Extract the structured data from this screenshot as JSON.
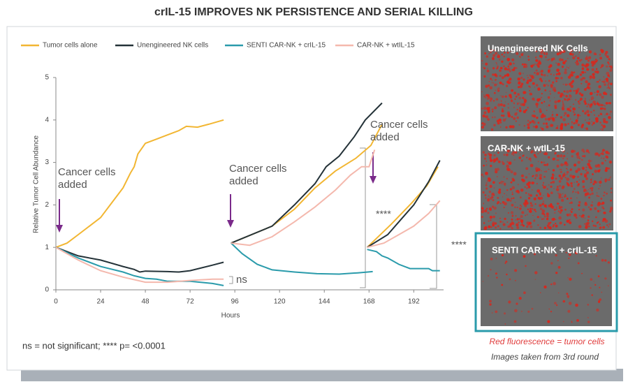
{
  "title": "crIL-15 IMPROVES NK PERSISTENCE AND SERIAL KILLING",
  "chart_data": {
    "type": "line",
    "y_label": "Relative Tumor Cell Abundance",
    "x_label": "Hours",
    "xlim": [
      0,
      208
    ],
    "xticks": [
      0,
      24,
      48,
      72,
      96,
      120,
      144,
      168,
      192
    ],
    "ylim": [
      0,
      5
    ],
    "yticks": [
      0,
      1,
      2,
      3,
      4,
      5
    ],
    "grid": false,
    "legend": "top",
    "series": [
      {
        "name": "Tumor cells alone",
        "color": "#f2b632",
        "x": [
          0,
          6,
          12,
          18,
          24,
          30,
          36,
          40,
          42,
          44,
          48,
          54,
          60,
          66,
          70,
          76,
          82,
          90,
          null,
          94,
          105,
          116,
          128,
          139,
          150,
          161,
          169,
          175,
          null,
          167,
          180,
          191,
          199,
          205
        ],
        "values": [
          1,
          1.1,
          1.3,
          1.5,
          1.7,
          2.05,
          2.4,
          2.75,
          2.9,
          3.2,
          3.45,
          3.55,
          3.65,
          3.75,
          3.85,
          3.83,
          3.9,
          4.0,
          null,
          1.1,
          1.3,
          1.5,
          1.9,
          2.4,
          2.8,
          3.1,
          3.4,
          3.9,
          null,
          1.0,
          1.55,
          2.05,
          2.45,
          2.9
        ]
      },
      {
        "name": "Unengineered NK cells",
        "color": "#243238",
        "x": [
          0,
          12,
          24,
          36,
          42,
          45,
          48,
          60,
          66,
          72,
          84,
          90,
          null,
          94,
          116,
          128,
          139,
          145,
          152,
          160,
          166,
          175,
          null,
          167,
          178,
          185,
          192,
          200,
          206
        ],
        "values": [
          1,
          0.8,
          0.7,
          0.55,
          0.48,
          0.42,
          0.44,
          0.43,
          0.42,
          0.45,
          0.58,
          0.65,
          null,
          1.1,
          1.5,
          2.0,
          2.5,
          2.9,
          3.15,
          3.6,
          4.0,
          4.4,
          null,
          1.0,
          1.3,
          1.65,
          2.0,
          2.55,
          3.05
        ]
      },
      {
        "name": "SENTI CAR-NK + crIL-15",
        "color": "#2a9bab",
        "x": [
          0,
          12,
          24,
          36,
          42,
          48,
          54,
          60,
          72,
          84,
          90,
          null,
          94,
          100,
          108,
          116,
          128,
          140,
          152,
          162,
          170,
          null,
          167,
          172,
          175,
          178,
          184,
          190,
          196,
          200,
          202,
          206
        ],
        "values": [
          1,
          0.75,
          0.55,
          0.42,
          0.33,
          0.27,
          0.25,
          0.2,
          0.2,
          0.15,
          0.1,
          null,
          1.1,
          0.85,
          0.6,
          0.47,
          0.42,
          0.38,
          0.37,
          0.4,
          0.43,
          null,
          0.95,
          0.9,
          0.8,
          0.75,
          0.6,
          0.5,
          0.5,
          0.5,
          0.45,
          0.45
        ]
      },
      {
        "name": "CAR-NK + wtIL-15",
        "color": "#f4b8ad",
        "x": [
          0,
          12,
          24,
          36,
          48,
          60,
          72,
          84,
          90,
          null,
          94,
          104,
          116,
          128,
          139,
          150,
          158,
          164,
          168,
          171,
          null,
          167,
          176,
          184,
          192,
          200,
          206
        ],
        "values": [
          1,
          0.7,
          0.45,
          0.3,
          0.18,
          0.18,
          0.22,
          0.25,
          0.25,
          null,
          1.1,
          1.05,
          1.25,
          1.6,
          1.95,
          2.35,
          2.7,
          2.9,
          2.9,
          3.3,
          null,
          1.0,
          1.1,
          1.3,
          1.5,
          1.8,
          2.1
        ]
      }
    ],
    "annotations": [
      "Cancer cells added",
      "Cancer cells added",
      "Cancer cells added",
      "ns",
      "****",
      "****"
    ]
  },
  "images": [
    {
      "label": "Unengineered NK Cells"
    },
    {
      "label": "CAR-NK + wtIL-15"
    },
    {
      "label": "SENTI CAR-NK + crIL-15"
    }
  ],
  "image_caption": "Red fluorescence = tumor cells",
  "image_note": "Images taken from 3rd round",
  "footnote": "ns = not significant; **** p= <0.0001"
}
